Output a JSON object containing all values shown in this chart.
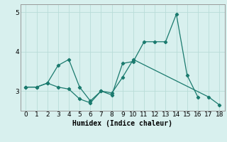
{
  "x": [
    0,
    1,
    2,
    3,
    4,
    5,
    6,
    7,
    8,
    9,
    10,
    11,
    12,
    13,
    14,
    15,
    16,
    17,
    18
  ],
  "line1": [
    3.1,
    3.1,
    3.2,
    3.65,
    3.8,
    3.1,
    2.75,
    3.0,
    2.9,
    3.7,
    3.75,
    4.25,
    4.25,
    4.25,
    4.95,
    3.4,
    2.85,
    null,
    null
  ],
  "line2": [
    3.1,
    3.1,
    3.2,
    3.1,
    3.05,
    2.8,
    2.7,
    3.0,
    2.95,
    3.35,
    3.8,
    null,
    null,
    null,
    null,
    null,
    null,
    2.85,
    2.65
  ],
  "line_color": "#1a7a6e",
  "bg_color": "#d8f0ee",
  "xlabel": "Humidex (Indice chaleur)",
  "xlabel_fontsize": 7,
  "ylim": [
    2.5,
    5.2
  ],
  "xlim": [
    -0.5,
    18.5
  ],
  "yticks": [
    3,
    4,
    5
  ],
  "xticks": [
    0,
    1,
    2,
    3,
    4,
    5,
    6,
    7,
    8,
    9,
    10,
    11,
    12,
    13,
    14,
    15,
    16,
    17,
    18
  ],
  "grid_color": "#b8dcd8",
  "marker": "D",
  "markersize": 2.2,
  "linewidth": 0.9,
  "tick_fontsize": 6.5
}
